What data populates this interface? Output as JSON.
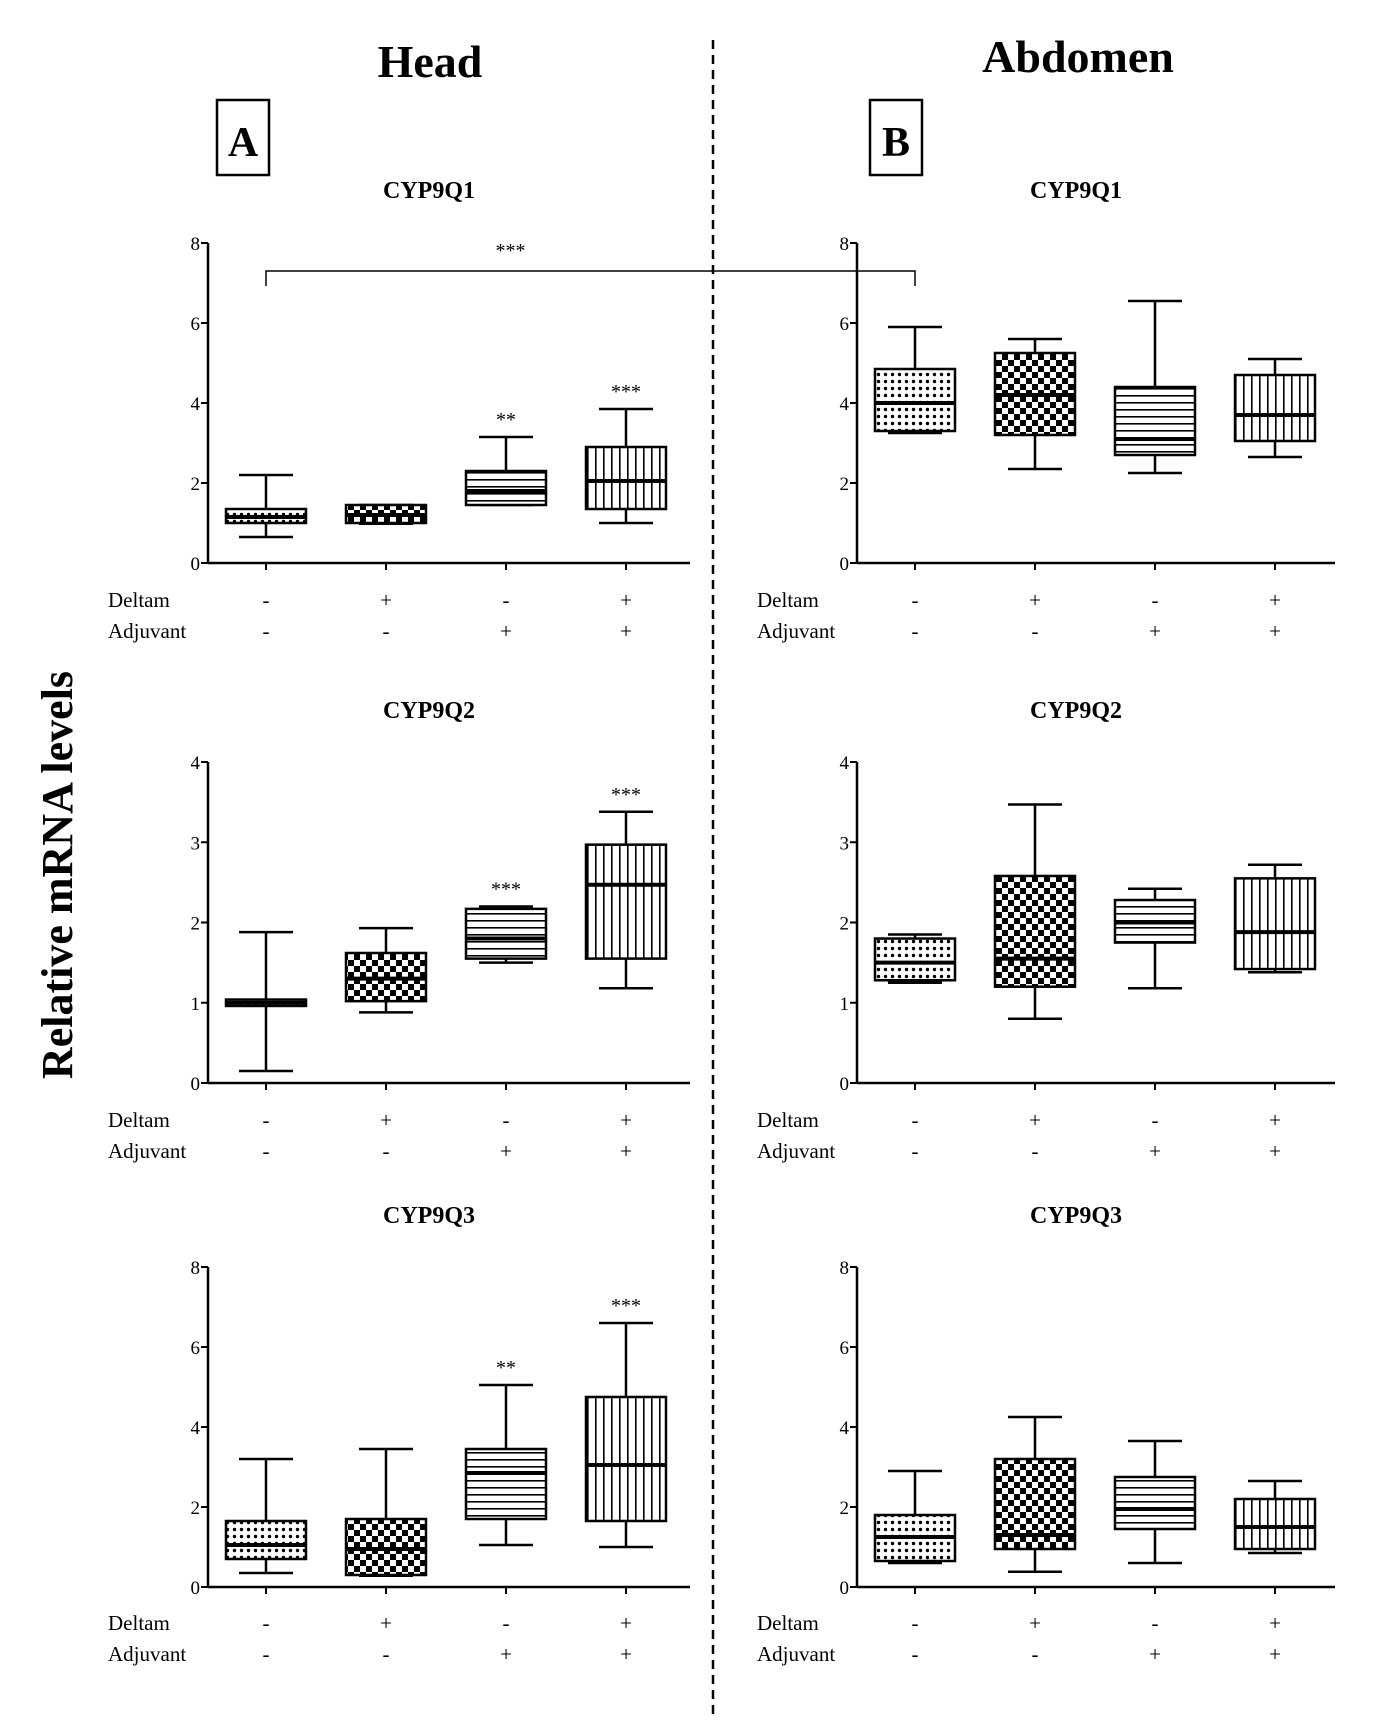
{
  "panel_titles": {
    "left": "Head",
    "right": "Abdomen"
  },
  "panel_labels": {
    "left": "A",
    "right": "B"
  },
  "ylabel": "Relative mRNA levels",
  "row_labels": {
    "deltam": "Deltam",
    "adjuvant": "Adjuvant"
  },
  "treatments": {
    "deltam": [
      "-",
      "+",
      "-",
      "+"
    ],
    "adjuvant": [
      "-",
      "-",
      "+",
      "+"
    ]
  },
  "fills": [
    "dots",
    "checker",
    "hlines",
    "vlines"
  ],
  "cross_comparison": {
    "label": "***",
    "from_chart": 0,
    "to_chart": 1,
    "group": 0
  },
  "chart_data": [
    {
      "type": "box",
      "panel": "Head",
      "title": "CYP9Q1",
      "ylim": [
        0,
        8
      ],
      "yticks": [
        0,
        2,
        4,
        6,
        8
      ],
      "boxes": [
        {
          "whisker_low": 0.65,
          "q1": 1.0,
          "median": 1.15,
          "q3": 1.35,
          "whisker_high": 2.2,
          "sig": ""
        },
        {
          "whisker_low": 0.98,
          "q1": 1.0,
          "median": 1.2,
          "q3": 1.45,
          "whisker_high": 1.45,
          "sig": ""
        },
        {
          "whisker_low": 1.45,
          "q1": 1.45,
          "median": 1.8,
          "q3": 2.3,
          "whisker_high": 3.15,
          "sig": "**"
        },
        {
          "whisker_low": 1.0,
          "q1": 1.35,
          "median": 2.05,
          "q3": 2.9,
          "whisker_high": 3.85,
          "sig": "***"
        }
      ]
    },
    {
      "type": "box",
      "panel": "Abdomen",
      "title": "CYP9Q1",
      "ylim": [
        0,
        8
      ],
      "yticks": [
        0,
        2,
        4,
        6,
        8
      ],
      "boxes": [
        {
          "whisker_low": 3.25,
          "q1": 3.3,
          "median": 4.0,
          "q3": 4.85,
          "whisker_high": 5.9,
          "sig": ""
        },
        {
          "whisker_low": 2.35,
          "q1": 3.2,
          "median": 4.2,
          "q3": 5.25,
          "whisker_high": 5.6,
          "sig": ""
        },
        {
          "whisker_low": 2.25,
          "q1": 2.7,
          "median": 3.1,
          "q3": 4.4,
          "whisker_high": 6.55,
          "sig": ""
        },
        {
          "whisker_low": 2.65,
          "q1": 3.05,
          "median": 3.7,
          "q3": 4.7,
          "whisker_high": 5.1,
          "sig": ""
        }
      ]
    },
    {
      "type": "box",
      "panel": "Head",
      "title": "CYP9Q2",
      "ylim": [
        0,
        4
      ],
      "yticks": [
        0,
        1,
        2,
        3,
        4
      ],
      "boxes": [
        {
          "whisker_low": 0.15,
          "q1": 0.96,
          "median": 1.0,
          "q3": 1.04,
          "whisker_high": 1.88,
          "sig": ""
        },
        {
          "whisker_low": 0.88,
          "q1": 1.02,
          "median": 1.3,
          "q3": 1.62,
          "whisker_high": 1.93,
          "sig": ""
        },
        {
          "whisker_low": 1.5,
          "q1": 1.55,
          "median": 1.8,
          "q3": 2.17,
          "whisker_high": 2.2,
          "sig": "***"
        },
        {
          "whisker_low": 1.18,
          "q1": 1.55,
          "median": 2.47,
          "q3": 2.97,
          "whisker_high": 3.38,
          "sig": "***"
        }
      ]
    },
    {
      "type": "box",
      "panel": "Abdomen",
      "title": "CYP9Q2",
      "ylim": [
        0,
        4
      ],
      "yticks": [
        0,
        1,
        2,
        3,
        4
      ],
      "boxes": [
        {
          "whisker_low": 1.25,
          "q1": 1.28,
          "median": 1.5,
          "q3": 1.8,
          "whisker_high": 1.85,
          "sig": ""
        },
        {
          "whisker_low": 0.8,
          "q1": 1.2,
          "median": 1.55,
          "q3": 2.58,
          "whisker_high": 3.47,
          "sig": ""
        },
        {
          "whisker_low": 1.18,
          "q1": 1.75,
          "median": 2.0,
          "q3": 2.28,
          "whisker_high": 2.42,
          "sig": ""
        },
        {
          "whisker_low": 1.38,
          "q1": 1.42,
          "median": 1.88,
          "q3": 2.55,
          "whisker_high": 2.72,
          "sig": ""
        }
      ]
    },
    {
      "type": "box",
      "panel": "Head",
      "title": "CYP9Q3",
      "ylim": [
        0,
        8
      ],
      "yticks": [
        0,
        2,
        4,
        6,
        8
      ],
      "boxes": [
        {
          "whisker_low": 0.35,
          "q1": 0.7,
          "median": 1.05,
          "q3": 1.65,
          "whisker_high": 3.2,
          "sig": ""
        },
        {
          "whisker_low": 0.28,
          "q1": 0.3,
          "median": 0.95,
          "q3": 1.7,
          "whisker_high": 3.45,
          "sig": ""
        },
        {
          "whisker_low": 1.05,
          "q1": 1.7,
          "median": 2.85,
          "q3": 3.45,
          "whisker_high": 5.05,
          "sig": "**"
        },
        {
          "whisker_low": 1.0,
          "q1": 1.65,
          "median": 3.05,
          "q3": 4.75,
          "whisker_high": 6.6,
          "sig": "***"
        }
      ]
    },
    {
      "type": "box",
      "panel": "Abdomen",
      "title": "CYP9Q3",
      "ylim": [
        0,
        8
      ],
      "yticks": [
        0,
        2,
        4,
        6,
        8
      ],
      "boxes": [
        {
          "whisker_low": 0.6,
          "q1": 0.65,
          "median": 1.25,
          "q3": 1.8,
          "whisker_high": 2.9,
          "sig": ""
        },
        {
          "whisker_low": 0.38,
          "q1": 0.95,
          "median": 1.3,
          "q3": 3.2,
          "whisker_high": 4.25,
          "sig": ""
        },
        {
          "whisker_low": 0.6,
          "q1": 1.45,
          "median": 1.95,
          "q3": 2.75,
          "whisker_high": 3.65,
          "sig": ""
        },
        {
          "whisker_low": 0.85,
          "q1": 0.95,
          "median": 1.5,
          "q3": 2.2,
          "whisker_high": 2.65,
          "sig": ""
        }
      ]
    }
  ]
}
